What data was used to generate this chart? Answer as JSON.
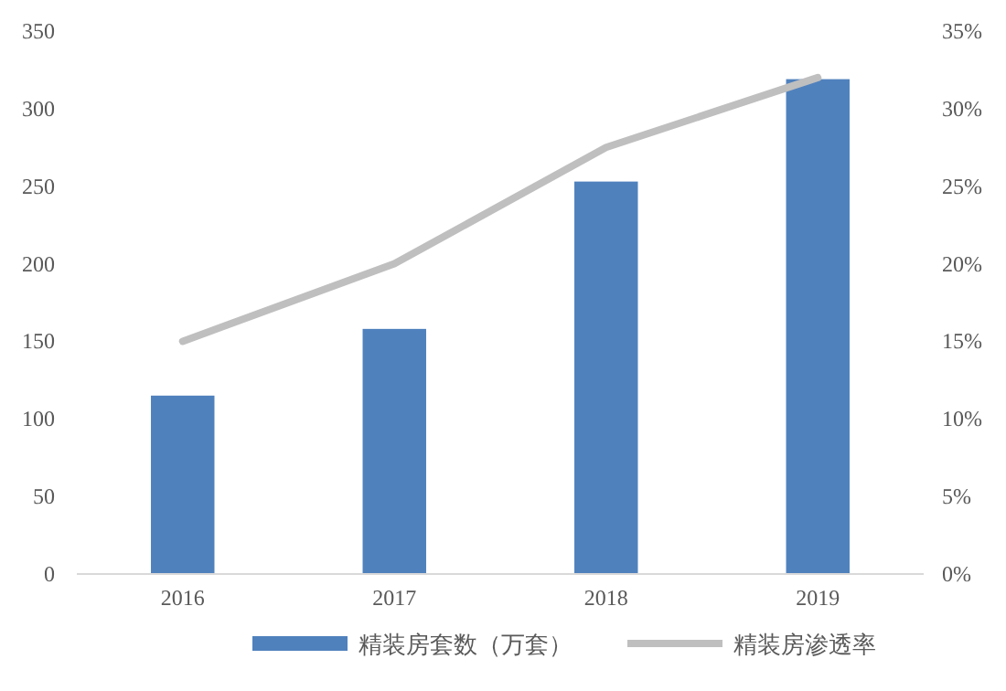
{
  "chart_data": {
    "type": "bar",
    "categories": [
      "2016",
      "2017",
      "2018",
      "2019"
    ],
    "series": [
      {
        "name": "精装房套数（万套）",
        "color": "#4f81bd",
        "values": [
          115,
          158,
          253,
          319
        ]
      },
      {
        "name": "精装房渗透率",
        "type": "line",
        "axis": "y2",
        "color": "#bfbfbf",
        "values": [
          15,
          20,
          27.5,
          32
        ]
      }
    ],
    "ylim": [
      0,
      350
    ],
    "yticks": [
      0,
      50,
      100,
      150,
      200,
      250,
      300,
      350
    ],
    "y2lim": [
      0,
      35
    ],
    "y2ticks": [
      {
        "value": 0,
        "label": "0%"
      },
      {
        "value": 5,
        "label": "5%"
      },
      {
        "value": 10,
        "label": "10%"
      },
      {
        "value": 15,
        "label": "15%"
      },
      {
        "value": 20,
        "label": "20%"
      },
      {
        "value": 25,
        "label": "25%"
      },
      {
        "value": 30,
        "label": "30%"
      },
      {
        "value": 35,
        "label": "35%"
      }
    ],
    "grid": false,
    "legend": "bottom",
    "marker": "none",
    "line_style": "solid"
  }
}
